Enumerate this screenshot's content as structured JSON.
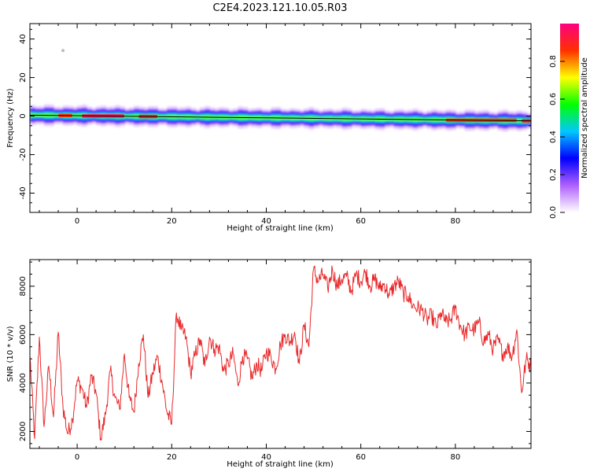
{
  "title": "C2E4.2023.121.10.05.R03",
  "colorbar": {
    "label": "Normalized spectral amplitude",
    "ticks": [
      0.0,
      0.2,
      0.4,
      0.6,
      0.8
    ],
    "tick_labels": [
      "0.0",
      "0.2",
      "0.4",
      "0.6",
      "0.8"
    ],
    "colors": [
      "#ffffff",
      "#b060ff",
      "#0000ff",
      "#00c8ff",
      "#00ff00",
      "#ffff00",
      "#ff3000",
      "#ff0080"
    ]
  },
  "chart_data": [
    {
      "type": "heatmap",
      "ylabel": "Frequency (Hz)",
      "xlabel": "Height of straight line (km)",
      "xlim": [
        -10,
        96
      ],
      "ylim": [
        -50,
        48
      ],
      "xticks": [
        0,
        20,
        40,
        60,
        80
      ],
      "yticks": [
        -40,
        -20,
        0,
        20,
        40
      ],
      "band": {
        "x_start": -10,
        "x_end": 96,
        "frequency_center": -1,
        "peak_frequency_hz": -1,
        "peak_frequency_start": 0.5,
        "peak_frequency_end": -2.5,
        "halfwidth_hz": 3,
        "outer_halo_halfwidth_hz": 5,
        "high_amplitude_segments": [
          {
            "x": [
              -4,
              -1
            ],
            "amplitude": 0.85
          },
          {
            "x": [
              1,
              10
            ],
            "amplitude": 0.95
          },
          {
            "x": [
              13,
              17
            ],
            "amplitude": 0.9
          },
          {
            "x": [
              78,
              93
            ],
            "amplitude": 0.85
          },
          {
            "x": [
              94,
              96
            ],
            "amplitude": 0.9
          }
        ],
        "line_color": "#000000"
      },
      "outlier_point": {
        "x": -3,
        "y": 34,
        "amplitude": 0.05
      }
    },
    {
      "type": "line",
      "ylabel": "SNR (10 * v/v)",
      "xlabel": "Height of straight line (km)",
      "xlim": [
        -10,
        96
      ],
      "ylim": [
        1300,
        9100
      ],
      "xticks": [
        0,
        20,
        40,
        60,
        80
      ],
      "yticks": [
        2000,
        4000,
        6000,
        8000
      ],
      "line_color": "#e8282a",
      "series": [
        {
          "x": [
            -10,
            -9,
            -8,
            -7,
            -6,
            -5,
            -4,
            -3,
            -2,
            -1,
            0,
            1,
            2,
            3,
            4,
            5,
            6,
            7,
            8,
            9,
            10,
            11,
            12,
            13,
            14,
            15,
            16,
            17,
            18,
            19,
            20,
            21,
            22,
            23,
            24,
            25,
            26,
            27,
            28,
            29,
            30,
            31,
            32,
            33,
            34,
            35,
            36,
            37,
            38,
            39,
            40,
            41,
            42,
            43,
            44,
            45,
            46,
            47,
            48,
            49,
            50,
            51,
            52,
            53,
            54,
            55,
            56,
            57,
            58,
            59,
            60,
            61,
            62,
            63,
            64,
            65,
            66,
            67,
            68,
            69,
            70,
            71,
            72,
            73,
            74,
            75,
            76,
            77,
            78,
            79,
            80,
            81,
            82,
            83,
            84,
            85,
            86,
            87,
            88,
            89,
            90,
            91,
            92,
            93,
            94,
            95,
            96
          ],
          "values": [
            5100,
            1700,
            5900,
            2200,
            4700,
            2600,
            6100,
            3000,
            1900,
            2500,
            4100,
            3800,
            3000,
            4300,
            3600,
            1700,
            2700,
            4500,
            3400,
            2900,
            5200,
            3400,
            2800,
            4800,
            6000,
            3400,
            4400,
            5100,
            4000,
            2800,
            2300,
            6900,
            6200,
            5900,
            4400,
            5200,
            5800,
            4700,
            5900,
            5400,
            5500,
            4500,
            4800,
            5200,
            3900,
            5100,
            5000,
            4200,
            4800,
            4500,
            5300,
            5100,
            4600,
            5600,
            6000,
            5700,
            6100,
            4800,
            6400,
            5500,
            8700,
            8200,
            8500,
            7900,
            8700,
            8000,
            8300,
            8400,
            7800,
            8500,
            8200,
            8600,
            8000,
            8300,
            7900,
            8100,
            7600,
            8000,
            8200,
            7700,
            7600,
            7200,
            7100,
            7000,
            6600,
            6800,
            6300,
            6900,
            6500,
            6600,
            7100,
            6400,
            6000,
            6300,
            6200,
            6500,
            5700,
            6000,
            5400,
            5800,
            5200,
            5500,
            5100,
            6200,
            3600,
            5000,
            4700
          ]
        }
      ]
    }
  ]
}
